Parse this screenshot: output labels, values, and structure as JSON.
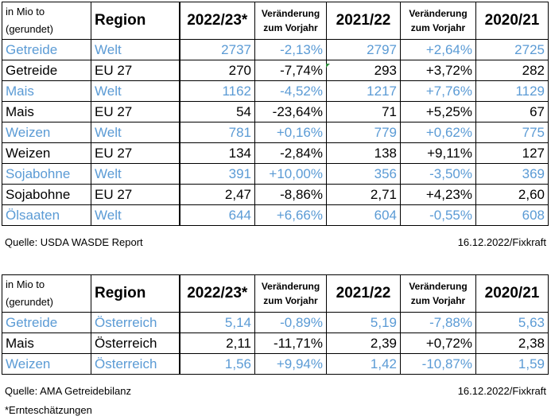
{
  "table1": {
    "header": {
      "unit": "in Mio to (gerundet)",
      "region": "Region",
      "y1": "2022/23*",
      "c1": "Veränderung zum Vorjahr",
      "y2": "2021/22",
      "c2": "Veränderung zum Vorjahr",
      "y3": "2020/21"
    },
    "rows": [
      {
        "crop": "Getreide",
        "region": "Welt",
        "v1": "2737",
        "ch1": "-2,13%",
        "v2": "2797",
        "ch2": "+2,64%",
        "v3": "2725"
      },
      {
        "crop": "Getreide",
        "region": "EU 27",
        "v1": "270",
        "ch1": "-7,74%",
        "v2": "293",
        "ch2": "+3,72%",
        "v3": "282"
      },
      {
        "crop": "Mais",
        "region": "Welt",
        "v1": "1162",
        "ch1": "-4,52%",
        "v2": "1217",
        "ch2": "+7,76%",
        "v3": "1129"
      },
      {
        "crop": "Mais",
        "region": "EU 27",
        "v1": "54",
        "ch1": "-23,64%",
        "v2": "71",
        "ch2": "+5,25%",
        "v3": "67"
      },
      {
        "crop": "Weizen",
        "region": "Welt",
        "v1": "781",
        "ch1": "+0,16%",
        "v2": "779",
        "ch2": "+0,62%",
        "v3": "775"
      },
      {
        "crop": "Weizen",
        "region": "EU 27",
        "v1": "134",
        "ch1": "-2,84%",
        "v2": "138",
        "ch2": "+9,11%",
        "v3": "127"
      },
      {
        "crop": "Sojabohne",
        "region": "Welt",
        "v1": "391",
        "ch1": "+10,00%",
        "v2": "356",
        "ch2": "-3,50%",
        "v3": "369"
      },
      {
        "crop": "Sojabohne",
        "region": "EU 27",
        "v1": "2,47",
        "ch1": "-8,86%",
        "v2": "2,71",
        "ch2": "+4,23%",
        "v3": "2,60"
      },
      {
        "crop": "Ölsaaten",
        "region": "Welt",
        "v1": "644",
        "ch1": "+6,66%",
        "v2": "604",
        "ch2": "-0,55%",
        "v3": "608"
      }
    ],
    "source": "Quelle: USDA WASDE Report",
    "date": "16.12.2022/Fixkraft"
  },
  "table2": {
    "header": {
      "unit": "in Mio to (gerundet)",
      "region": "Region",
      "y1": "2022/23*",
      "c1": "Veränderung zum Vorjahr",
      "y2": "2021/22",
      "c2": "Veränderung zum Vorjahr",
      "y3": "2020/21"
    },
    "rows": [
      {
        "crop": "Getreide",
        "region": "Österreich",
        "v1": "5,14",
        "ch1": "-0,89%",
        "v2": "5,19",
        "ch2": "-7,88%",
        "v3": "5,63"
      },
      {
        "crop": "Mais",
        "region": "Österreich",
        "v1": "2,11",
        "ch1": "-11,71%",
        "v2": "2,39",
        "ch2": "+0,72%",
        "v3": "2,38"
      },
      {
        "crop": "Weizen",
        "region": "Österreich",
        "v1": "1,56",
        "ch1": "+9,94%",
        "v2": "1,42",
        "ch2": "-10,87%",
        "v3": "1,59"
      }
    ],
    "source": "Quelle: AMA Getreidebilanz",
    "date": "16.12.2022/Fixkraft"
  },
  "footnote": "*Ernteschätzungen",
  "colors": {
    "world_rows": "#5b9bd5",
    "text": "#000000"
  }
}
